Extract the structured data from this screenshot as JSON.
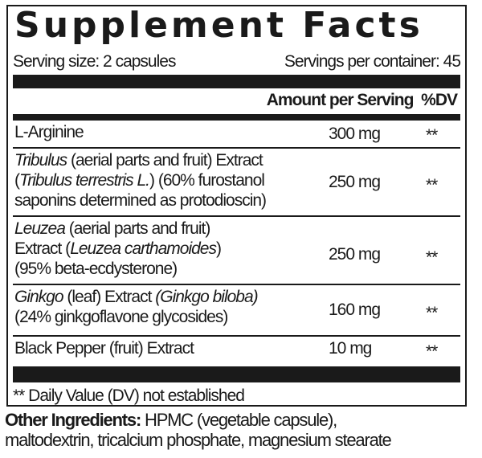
{
  "title": "Supplement Facts",
  "serving_size": "Serving size: 2 capsules",
  "servings_per_container": "Servings per container: 45",
  "header": {
    "amount": "Amount per Serving",
    "dv": "%DV"
  },
  "rows": [
    {
      "lines": [
        [
          "L-Arginine"
        ]
      ],
      "amount": "300 mg",
      "dv": "**"
    },
    {
      "lines": [
        [
          "Tribulus",
          " (aerial parts and fruit) Extract"
        ],
        [
          "(",
          "Tribulus terrestris L.",
          ") (60% furostanol"
        ],
        [
          "saponins determined as protodioscin)"
        ]
      ],
      "amount": "250 mg",
      "dv": "**"
    },
    {
      "lines": [
        [
          "Leuzea",
          " (aerial parts and fruit)"
        ],
        [
          "Extract (",
          "Leuzea carthamoides",
          ")"
        ],
        [
          "(95% beta-ecdysterone)"
        ]
      ],
      "amount": "250 mg",
      "dv": "**"
    },
    {
      "lines": [
        [
          "Ginkgo",
          " (leaf) Extract ",
          "(Ginkgo biloba)"
        ],
        [
          "(24% ginkgoflavone glycosides)"
        ]
      ],
      "amount": "160 mg",
      "dv": "**"
    },
    {
      "lines": [
        [
          "Black Pepper (fruit) Extract"
        ]
      ],
      "amount": "10 mg",
      "dv": "**"
    }
  ],
  "footnote": "** Daily Value (DV) not established",
  "other_ingredients": {
    "label": "Other Ingredients:",
    "line1": " HPMC (vegetable capsule),",
    "line2": "maltodextrin, tricalcium phosphate, magnesium stearate"
  }
}
